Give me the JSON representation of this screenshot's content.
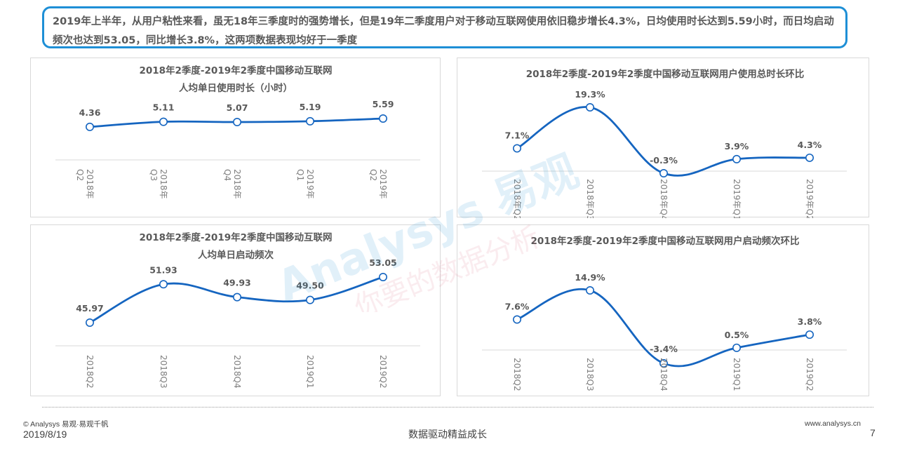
{
  "summary": "2019年上半年，从用户粘性来看，虽无18年三季度时的强势增长，但是19年二季度用户对于移动互联网使用依旧稳步增长4.3%，日均使用时长达到5.59小时，而日均启动频次也达到53.05，同比增长3.8%，这两项数据表现均好于一季度",
  "footer": {
    "copyright": "© Analysys 易观·易观千帆",
    "date": "2019/8/19",
    "slogan": "数据驱动精益成长",
    "website": "www.analysys.cn",
    "page_number": "7"
  },
  "watermark": {
    "brand": "Analysys 易观",
    "tagline": "你要的数据分析"
  },
  "chart_data": [
    {
      "id": "daily-usage-hours",
      "type": "line",
      "title_lines": [
        "2018年2季度-2019年2季度中国移动互联网",
        "人均单日使用时长（小时）"
      ],
      "categories": [
        "2018年Q2",
        "2018年Q3",
        "2018年Q4",
        "2019年Q1",
        "2019年Q2"
      ],
      "values": [
        4.36,
        5.11,
        5.07,
        5.19,
        5.59
      ],
      "labels": [
        "4.36",
        "5.11",
        "5.07",
        "5.19",
        "5.59"
      ],
      "color": "#1565c0"
    },
    {
      "id": "total-usage-mom",
      "type": "line",
      "title_lines": [
        "2018年2季度-2019年2季度中国移动互联网用户使用总时长环比"
      ],
      "categories": [
        "2018年Q2",
        "2018年Q3",
        "2018年Q4",
        "2019年Q1",
        "2019年Q2"
      ],
      "values": [
        7.1,
        19.3,
        -0.3,
        3.9,
        4.3
      ],
      "labels": [
        "7.1%",
        "19.3%",
        "-0.3%",
        "3.9%",
        "4.3%"
      ],
      "color": "#1565c0"
    },
    {
      "id": "daily-launches",
      "type": "line",
      "title_lines": [
        "2018年2季度-2019年2季度中国移动互联网",
        "人均单日启动频次"
      ],
      "categories": [
        "2018Q2",
        "2018Q3",
        "2018Q4",
        "2019Q1",
        "2019Q2"
      ],
      "values": [
        45.97,
        51.93,
        49.93,
        49.5,
        53.05
      ],
      "labels": [
        "45.97",
        "51.93",
        "49.93",
        "49.50",
        "53.05"
      ],
      "color": "#1565c0"
    },
    {
      "id": "launch-frequency-mom",
      "type": "line",
      "title_lines": [
        "2018年2季度-2019年2季度中国移动互联网用户启动频次环比"
      ],
      "categories": [
        "2018Q2",
        "2018Q3",
        "2018Q4",
        "2019Q1",
        "2019Q2"
      ],
      "values": [
        7.6,
        14.9,
        -3.4,
        0.5,
        3.8
      ],
      "labels": [
        "7.6%",
        "14.9%",
        "-3.4%",
        "0.5%",
        "3.8%"
      ],
      "color": "#1565c0"
    }
  ]
}
